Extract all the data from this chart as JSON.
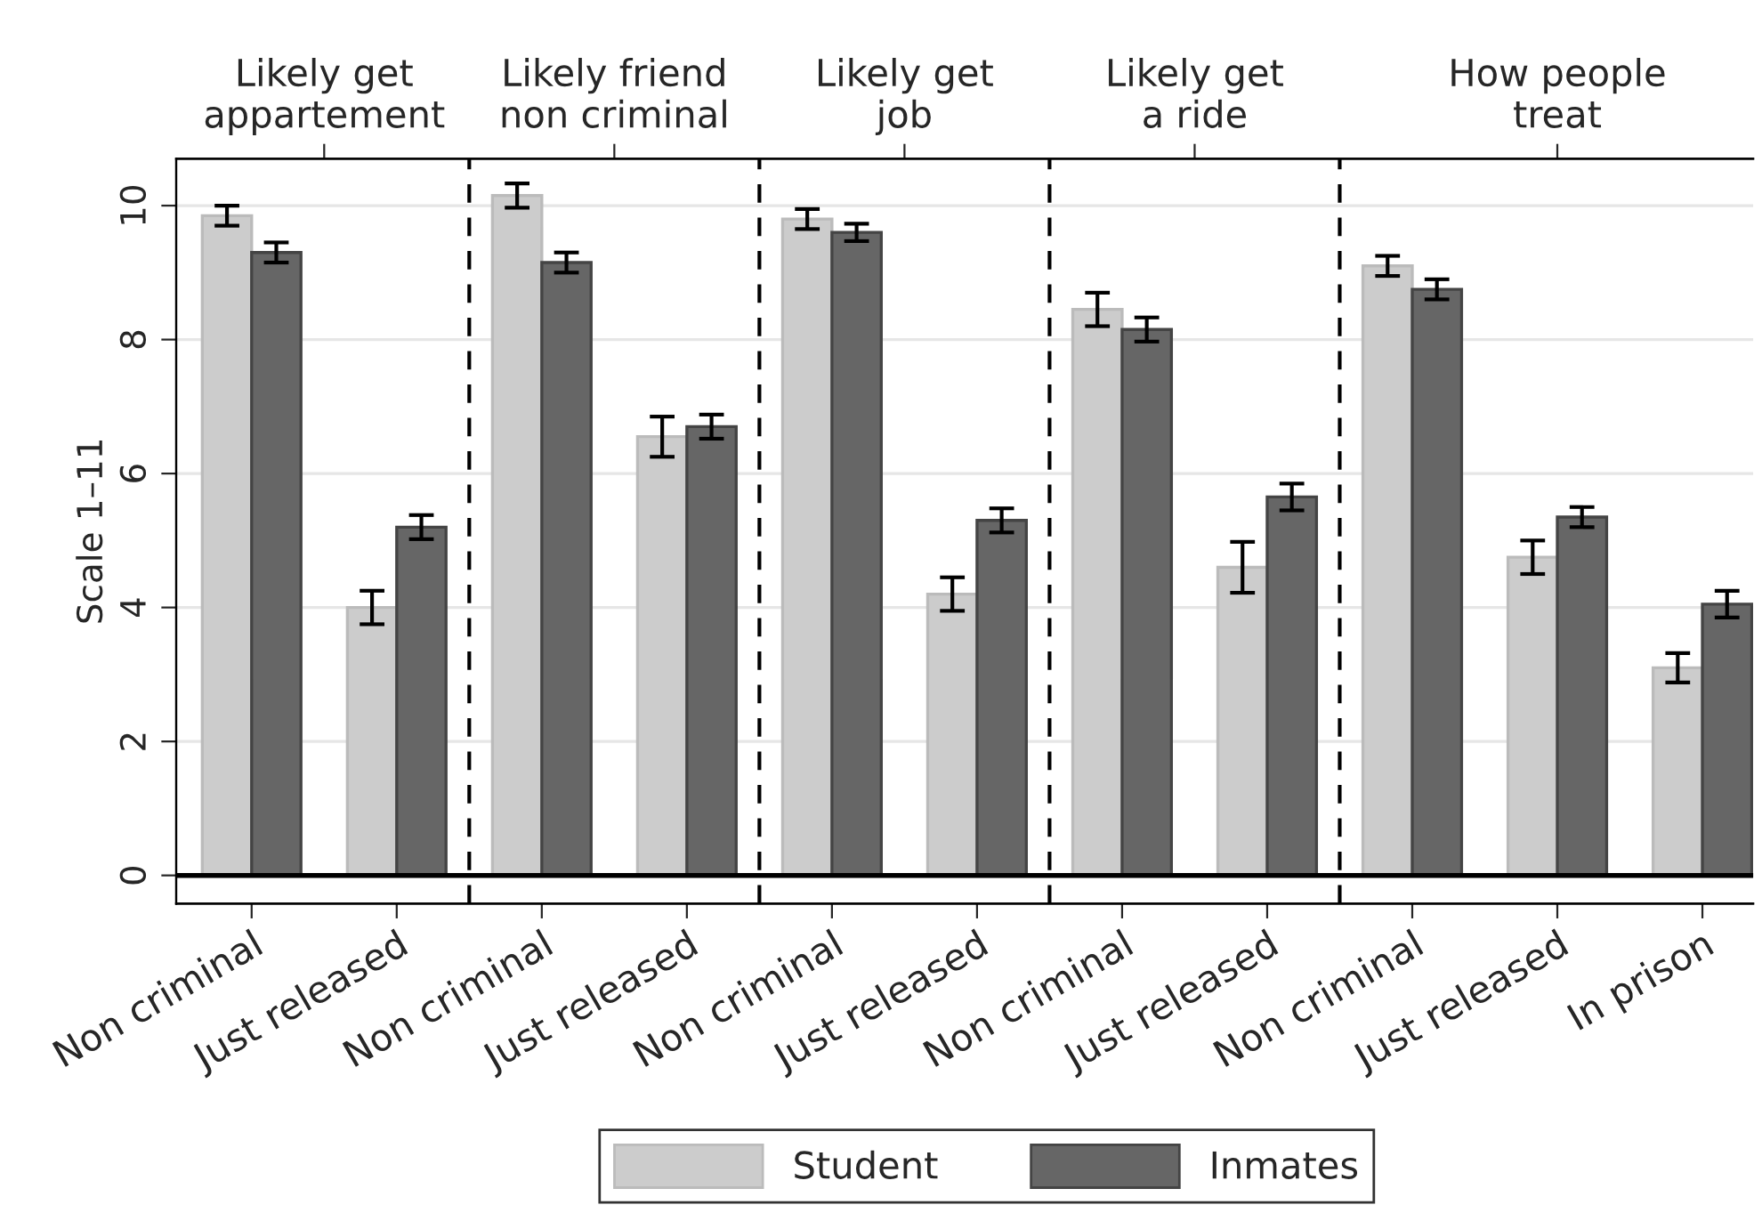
{
  "chart_data": {
    "type": "bar",
    "categories": [
      "Non criminal",
      "Just released",
      "Non criminal",
      "Just released",
      "Non criminal",
      "Just released",
      "Non criminal",
      "Just released",
      "Non criminal",
      "Just released",
      "In prison"
    ],
    "series": [
      {
        "name": "Student",
        "color": "#cccccc",
        "values": [
          9.85,
          4.0,
          10.15,
          6.55,
          9.8,
          4.2,
          8.45,
          4.6,
          9.1,
          4.75,
          3.1
        ],
        "errors": [
          0.15,
          0.25,
          0.18,
          0.3,
          0.15,
          0.25,
          0.25,
          0.38,
          0.15,
          0.25,
          0.22
        ]
      },
      {
        "name": "Inmates",
        "color": "#666666",
        "values": [
          9.3,
          5.2,
          9.15,
          6.7,
          9.6,
          5.3,
          8.15,
          5.65,
          8.75,
          5.35,
          4.05
        ],
        "errors": [
          0.15,
          0.18,
          0.15,
          0.18,
          0.13,
          0.18,
          0.18,
          0.2,
          0.15,
          0.15,
          0.2
        ]
      }
    ],
    "ylabel": "Scale 1–11",
    "ylim": [
      -0.42,
      10.7
    ],
    "yticks": [
      0,
      2,
      4,
      6,
      8,
      10
    ],
    "annotations": [
      "Likely get\nappartement",
      "Likely friend\nnon criminal",
      "Likely get\njob",
      "Likely get\na ride",
      "How people\ntreat"
    ],
    "grid": "y",
    "legend": "bottom"
  }
}
